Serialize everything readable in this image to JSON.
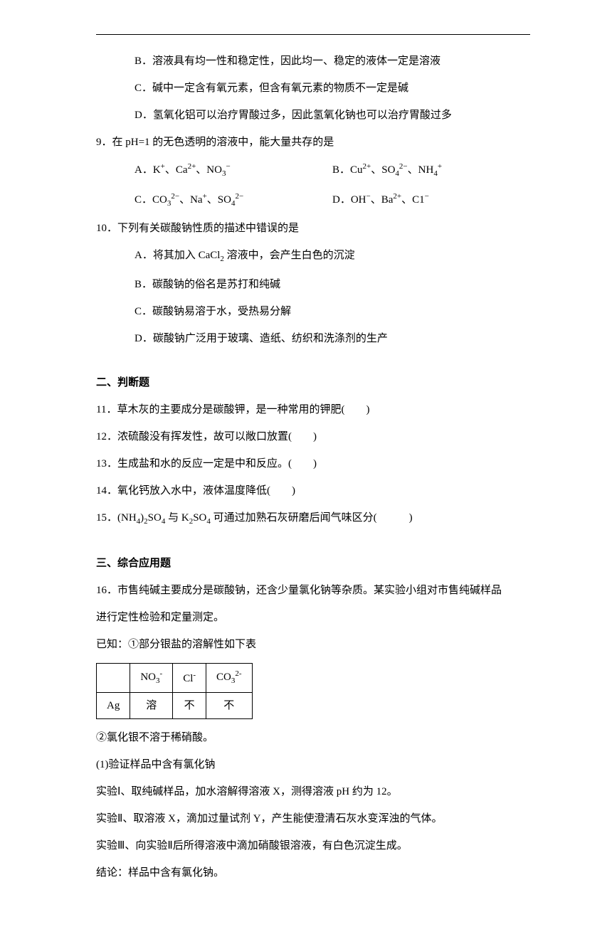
{
  "q8": {
    "optB": "B．溶液具有均一性和稳定性，因此均一、稳定的液体一定是溶液",
    "optC": "C．碱中一定含有氧元素，但含有氧元素的物质不一定是碱",
    "optD": "D．氢氧化铝可以治疗胃酸过多，因此氢氧化钠也可以治疗胃酸过多"
  },
  "q9": {
    "stem": "9．在 pH=1 的无色透明的溶液中，能大量共存的是",
    "optA_pre": "A．K",
    "optA_mid1": "、Ca",
    "optA_mid2": "、NO",
    "optB_pre": "B．Cu",
    "optB_mid1": "、SO",
    "optB_mid2": "、NH",
    "optC_pre": "C．CO",
    "optC_mid1": "、Na",
    "optC_mid2": "、SO",
    "optD_pre": "D．OH",
    "optD_mid1": "、Ba",
    "optD_mid2": "、C1"
  },
  "q10": {
    "stem": "10．下列有关碳酸钠性质的描述中错误的是",
    "optA_pre": "A．将其加入 CaCl",
    "optA_post": " 溶液中，会产生白色的沉淀",
    "optB": "B．碳酸钠的俗名是苏打和纯碱",
    "optC": "C．碳酸钠易溶于水，受热易分解",
    "optD": "D．碳酸钠广泛用于玻璃、造纸、纺织和洗涤剂的生产"
  },
  "section2": {
    "title": "二、判断题",
    "q11": "11．草木灰的主要成分是碳酸钾，是一种常用的钾肥(　　)",
    "q12": "12．浓硫酸没有挥发性，故可以敞口放置(　　)",
    "q13": "13．生成盐和水的反应一定是中和反应。(　　)",
    "q14": "14．氧化钙放入水中，液体温度降低(　　)",
    "q15_pre": "15．(NH",
    "q15_mid1": ")",
    "q15_mid2": "SO",
    "q15_mid3": " 与 K",
    "q15_mid4": "SO",
    "q15_post": " 可通过加熟石灰研磨后闻气味区分(　　　)"
  },
  "section3": {
    "title": "三、综合应用题",
    "q16_line1": "16．市售纯碱主要成分是碳酸钠，还含少量氯化钠等杂质。某实验小组对市售纯碱样品",
    "q16_line2": "进行定性检验和定量测定。",
    "q16_known": "已知：①部分银盐的溶解性如下表",
    "table": {
      "empty": "",
      "h1": "NO",
      "h2": "Cl",
      "h3": "CO",
      "r1c1": "Ag",
      "r1c2": "溶",
      "r1c3": "不",
      "r1c4": "不"
    },
    "note2": "②氯化银不溶于稀硝酸。",
    "part1": "(1)验证样品中含有氯化钠",
    "exp1": "实验Ⅰ、取纯碱样品，加水溶解得溶液 X，测得溶液 pH 约为 12。",
    "exp2": "实验Ⅱ、取溶液 X，滴加过量试剂 Y，产生能使澄清石灰水变浑浊的气体。",
    "exp3": "实验Ⅲ、向实验Ⅱ后所得溶液中滴加硝酸银溶液，有白色沉淀生成。",
    "conclusion": "结论：样品中含有氯化钠。"
  },
  "symbols": {
    "plus": "+",
    "minus": "−",
    "minus2": "2−",
    "two": "2",
    "twoplus": "2+",
    "three": "3",
    "four": "4",
    "fourplus": "4",
    "sub2": "2",
    "sup_plus": "+"
  }
}
